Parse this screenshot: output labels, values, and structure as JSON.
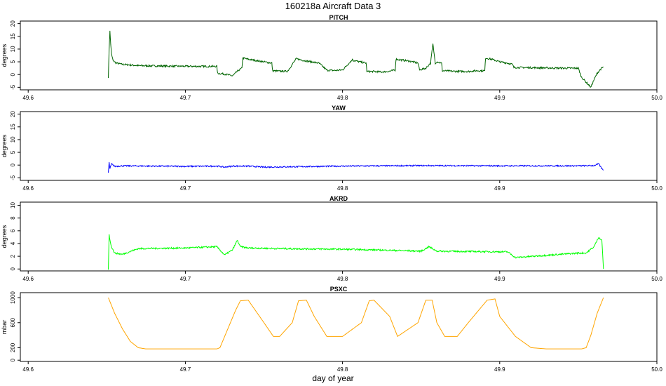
{
  "chart_data": {
    "type": "line",
    "title": "160218a   Aircraft Data 3",
    "xlabel": "day of year",
    "x_ticks": [
      "49.6",
      "49.7",
      "49.8",
      "49.9",
      "50.0"
    ],
    "xlim": [
      49.595,
      50.0
    ],
    "panels": [
      {
        "title": "PITCH",
        "ylabel": "degrees",
        "ylim": [
          -6,
          21
        ],
        "y_ticks": [
          "-5",
          "0",
          "5",
          "10",
          "15",
          "20"
        ],
        "color": "#006400",
        "noise": 0.35,
        "series": {
          "name": "PITCH",
          "x": [
            49.651,
            49.6515,
            49.652,
            49.6525,
            49.653,
            49.654,
            49.656,
            49.66,
            49.67,
            49.69,
            49.71,
            49.72,
            49.7205,
            49.725,
            49.73,
            49.7335,
            49.736,
            49.7365,
            49.74,
            49.745,
            49.75,
            49.755,
            49.7555,
            49.76,
            49.765,
            49.7705,
            49.7755,
            49.78,
            49.785,
            49.79,
            49.795,
            49.8,
            49.8065,
            49.807,
            49.815,
            49.8155,
            49.82,
            49.825,
            49.83,
            49.8335,
            49.834,
            49.84,
            49.845,
            49.848,
            49.849,
            49.853,
            49.856,
            49.8575,
            49.859,
            49.86,
            49.863,
            49.8635,
            49.87,
            49.88,
            49.885,
            49.8905,
            49.891,
            49.895,
            49.9,
            49.905,
            49.908,
            49.909,
            49.92,
            49.93,
            49.94,
            49.95,
            49.952,
            49.955,
            49.958,
            49.96,
            49.962,
            49.964,
            49.966
          ],
          "values": [
            -1,
            10,
            17,
            12,
            8,
            5.5,
            4.5,
            4,
            3.5,
            3.3,
            3.2,
            3.2,
            0.5,
            0.2,
            -0.5,
            1.5,
            2.5,
            6.5,
            6,
            5.5,
            5,
            4.5,
            1.5,
            1.3,
            1.3,
            6.2,
            5.5,
            5,
            4.5,
            1.7,
            1.6,
            1.8,
            6,
            5.5,
            4.5,
            1.2,
            1.2,
            1,
            1.3,
            1.8,
            6,
            5.5,
            5,
            4.5,
            1.8,
            2.5,
            4.5,
            12,
            4.5,
            5,
            4.5,
            1.5,
            1.3,
            1.2,
            1.5,
            1.5,
            6.5,
            6,
            5,
            4.5,
            4,
            2.8,
            2.7,
            2.6,
            2.5,
            2.5,
            -1,
            -3,
            -5,
            -2,
            0.5,
            2,
            3
          ]
        }
      },
      {
        "title": "YAW",
        "ylabel": "degrees",
        "ylim": [
          -6,
          21
        ],
        "y_ticks": [
          "-5",
          "0",
          "5",
          "10",
          "15",
          "20"
        ],
        "color": "#0000ff",
        "noise": 0.25,
        "series": {
          "name": "YAW",
          "x": [
            49.651,
            49.6515,
            49.652,
            49.653,
            49.655,
            49.66,
            49.7,
            49.72,
            49.725,
            49.73,
            49.74,
            49.75,
            49.8,
            49.85,
            49.9,
            49.95,
            49.96,
            49.963,
            49.965,
            49.966
          ],
          "values": [
            -3,
            1,
            -1.5,
            0.5,
            -0.5,
            -0.3,
            -0.5,
            -0.4,
            -0.8,
            -0.4,
            -0.4,
            -0.8,
            -0.4,
            -0.2,
            -0.3,
            -0.3,
            -0.2,
            0.5,
            -1.5,
            -2
          ]
        }
      },
      {
        "title": "AKRD",
        "ylabel": "degrees",
        "ylim": [
          -0.3,
          10.5
        ],
        "y_ticks": [
          "0",
          "2",
          "4",
          "6",
          "8",
          "10"
        ],
        "color": "#00ff00",
        "noise": 0.12,
        "series": {
          "name": "AKRD",
          "x": [
            49.651,
            49.6515,
            49.652,
            49.653,
            49.655,
            49.66,
            49.67,
            49.7,
            49.72,
            49.725,
            49.73,
            49.733,
            49.735,
            49.74,
            49.76,
            49.8,
            49.82,
            49.85,
            49.855,
            49.86,
            49.9,
            49.905,
            49.91,
            49.95,
            49.955,
            49.96,
            49.963,
            49.965,
            49.966
          ],
          "values": [
            0,
            5.5,
            4.5,
            3.5,
            2.5,
            2.3,
            3.2,
            3.3,
            3.5,
            2.2,
            3,
            4.5,
            3.5,
            3.3,
            3.2,
            3.1,
            3,
            2.8,
            3.5,
            2.8,
            2.7,
            2.7,
            1.8,
            2.5,
            2.5,
            3.5,
            5,
            4.5,
            0
          ]
        }
      },
      {
        "title": "PSXC",
        "ylabel": "mbar",
        "ylim": [
          -20,
          1080
        ],
        "y_ticks": [
          "0",
          "200",
          "600",
          "1000"
        ],
        "color": "#ffa500",
        "noise": 0,
        "series": {
          "name": "PSXC",
          "x": [
            49.651,
            49.655,
            49.66,
            49.665,
            49.67,
            49.675,
            49.7,
            49.72,
            49.722,
            49.727,
            49.732,
            49.735,
            49.74,
            49.75,
            49.756,
            49.76,
            49.768,
            49.772,
            49.777,
            49.782,
            49.79,
            49.8,
            49.812,
            49.817,
            49.82,
            49.83,
            49.835,
            49.848,
            49.853,
            49.857,
            49.86,
            49.865,
            49.873,
            49.88,
            49.892,
            49.897,
            49.9,
            49.91,
            49.92,
            49.93,
            49.95,
            49.952,
            49.955,
            49.958,
            49.962,
            49.966
          ],
          "values": [
            1000,
            750,
            500,
            300,
            200,
            180,
            180,
            180,
            200,
            500,
            800,
            950,
            960,
            600,
            380,
            380,
            600,
            950,
            960,
            700,
            380,
            380,
            600,
            950,
            960,
            700,
            380,
            600,
            960,
            960,
            600,
            380,
            380,
            600,
            960,
            980,
            700,
            380,
            200,
            180,
            180,
            180,
            200,
            400,
            750,
            1000
          ]
        }
      }
    ]
  }
}
